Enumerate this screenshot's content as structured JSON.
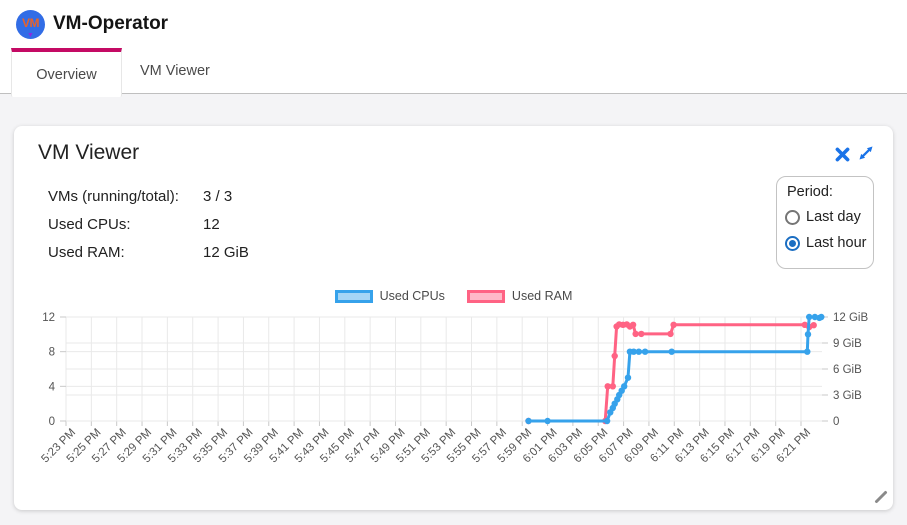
{
  "app": {
    "title": "VM-Operator",
    "logo_text": "VM"
  },
  "tabs": [
    {
      "label": "Overview",
      "active": true
    },
    {
      "label": "VM Viewer",
      "active": false
    }
  ],
  "card": {
    "title": "VM Viewer",
    "stats": [
      {
        "label": "VMs (running/total):",
        "value": "3 / 3"
      },
      {
        "label": "Used CPUs:",
        "value": "12"
      },
      {
        "label": "Used RAM:",
        "value": "12 GiB"
      }
    ],
    "period": {
      "label": "Period:",
      "options": [
        {
          "label": "Last day",
          "selected": false
        },
        {
          "label": "Last hour",
          "selected": true
        }
      ]
    }
  },
  "colors": {
    "tab_indicator": "#c40a64",
    "icon_blue": "#1a73e8",
    "radio_selected": "#1b6ec2",
    "cpu_blue": "#36a2eb",
    "ram_pink": "#ff6384",
    "page_background": "#f4f4f6"
  },
  "chart_data": {
    "type": "line",
    "stepped": true,
    "grid": true,
    "legend_position": "top",
    "legend": [
      {
        "label": "Used CPUs",
        "color": "#36a2eb",
        "fill": "rgba(54,162,235,0.45)"
      },
      {
        "label": "Used RAM",
        "color": "#ff6384",
        "fill": "rgba(255,99,132,0.45)"
      }
    ],
    "x_tick_labels": [
      "5:23 PM",
      "5:25 PM",
      "5:27 PM",
      "5:29 PM",
      "5:31 PM",
      "5:33 PM",
      "5:35 PM",
      "5:37 PM",
      "5:39 PM",
      "5:41 PM",
      "5:43 PM",
      "5:45 PM",
      "5:47 PM",
      "5:49 PM",
      "5:51 PM",
      "5:53 PM",
      "5:55 PM",
      "5:57 PM",
      "5:59 PM",
      "6:01 PM",
      "6:03 PM",
      "6:05 PM",
      "6:07 PM",
      "6:09 PM",
      "6:11 PM",
      "6:13 PM",
      "6:15 PM",
      "6:17 PM",
      "6:19 PM",
      "6:21 PM"
    ],
    "x_minutes_per_tick": 2,
    "x_range_minutes": [
      0,
      59.7
    ],
    "left_axis": {
      "range": [
        0,
        12
      ],
      "tick_labels": [
        "12",
        "8",
        "4",
        "0"
      ],
      "tick_values": [
        12,
        8,
        4,
        0
      ]
    },
    "right_axis": {
      "range": [
        0,
        12
      ],
      "tick_labels": [
        "12 GiB",
        "9 GiB",
        "6 GiB",
        "3 GiB",
        "0"
      ],
      "tick_values": [
        12,
        9,
        6,
        3,
        0
      ]
    },
    "series": [
      {
        "name": "Used CPUs",
        "axis": "left",
        "unit": "CPUs",
        "color": "#36a2eb",
        "points": [
          [
            36.5,
            0
          ],
          [
            38.0,
            0
          ],
          [
            42.7,
            0
          ],
          [
            42.95,
            1
          ],
          [
            43.15,
            1.5
          ],
          [
            43.3,
            2
          ],
          [
            43.5,
            2.5
          ],
          [
            43.65,
            3
          ],
          [
            43.85,
            3.5
          ],
          [
            44.05,
            4
          ],
          [
            44.35,
            5
          ],
          [
            44.5,
            8
          ],
          [
            44.8,
            8
          ],
          [
            45.2,
            8
          ],
          [
            45.7,
            8
          ],
          [
            47.8,
            8
          ],
          [
            58.5,
            8
          ],
          [
            58.55,
            10
          ],
          [
            58.65,
            12
          ],
          [
            59.1,
            12
          ],
          [
            59.45,
            11.9
          ],
          [
            59.6,
            12
          ]
        ]
      },
      {
        "name": "Used RAM",
        "axis": "right",
        "unit": "GiB",
        "color": "#ff6384",
        "points": [
          [
            36.5,
            0
          ],
          [
            42.55,
            0
          ],
          [
            42.75,
            4
          ],
          [
            43.15,
            4
          ],
          [
            43.3,
            7.5
          ],
          [
            43.45,
            10.9
          ],
          [
            43.65,
            11.15
          ],
          [
            43.95,
            11.1
          ],
          [
            44.25,
            11.15
          ],
          [
            44.5,
            10.9
          ],
          [
            44.75,
            11.1
          ],
          [
            44.95,
            10.05
          ],
          [
            45.4,
            10.05
          ],
          [
            47.7,
            10.05
          ],
          [
            47.95,
            11.1
          ],
          [
            58.3,
            11.1
          ],
          [
            58.65,
            10.85
          ],
          [
            59.0,
            11.05
          ]
        ]
      }
    ]
  }
}
